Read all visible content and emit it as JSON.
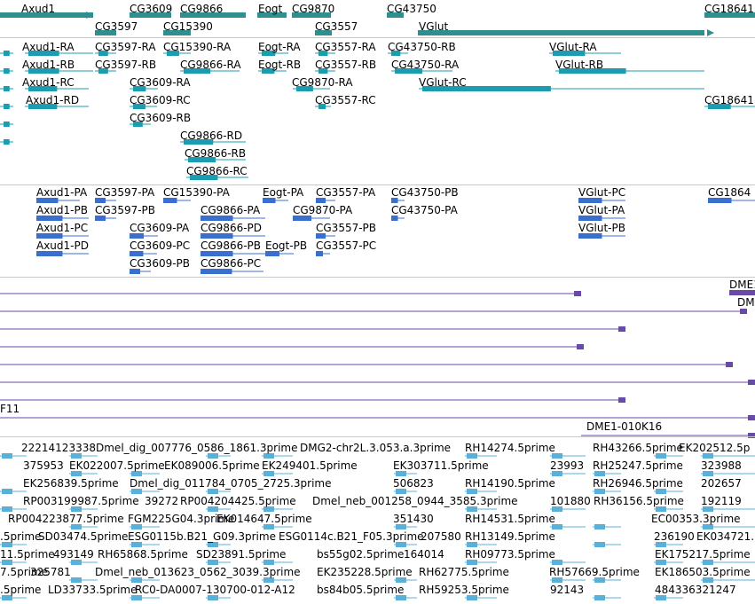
{
  "colors": {
    "gene": "#2f8f8f",
    "mrna": "#1b9db0",
    "protein": "#3a6fd0",
    "cdna": "#6a4aa8",
    "est": "#5ab0d8"
  },
  "genes": [
    "Axud1",
    "CG3609",
    "CG9866",
    "Eogt",
    "CG9870",
    "CG43750",
    "CG18641",
    "CG3597",
    "CG15390",
    "CG3557",
    "VGlut"
  ],
  "mrnas": [
    "Axud1-RA",
    "CG3597-RA",
    "CG15390-RA",
    "Eogt-RA",
    "CG3557-RA",
    "CG43750-RB",
    "VGlut-RA",
    "Axud1-RB",
    "CG3597-RB",
    "CG9866-RA",
    "Eogt-RB",
    "CG3557-RB",
    "CG43750-RA",
    "VGlut-RB",
    "Axud1-RC",
    "CG3609-RA",
    "CG9870-RA",
    "VGlut-RC",
    "Axud1-RD",
    "CG3609-RC",
    "CG3557-RC",
    "CG18641",
    "CG3609-RB",
    "CG9866-RD",
    "CG9866-RB",
    "CG9866-RC"
  ],
  "proteins": [
    "Axud1-PA",
    "CG3597-PA",
    "CG15390-PA",
    "Eogt-PA",
    "CG3557-PA",
    "CG43750-PB",
    "VGlut-PC",
    "CG1864",
    "Axud1-PB",
    "CG3597-PB",
    "CG9866-PA",
    "CG9870-PA",
    "CG43750-PA",
    "VGlut-PA",
    "Axud1-PC",
    "CG3609-PA",
    "CG9866-PD",
    "CG3557-PB",
    "VGlut-PB",
    "Axud1-PD",
    "CG3609-PC",
    "CG9866-PB",
    "Eogt-PB",
    "CG3557-PC",
    "CG3609-PB",
    "CG9866-PC"
  ],
  "cdna": [
    "DME1",
    "DM",
    "F11",
    "DME1-010K16"
  ],
  "ests": [
    "22214123338",
    "Dmel_dig_007776_0586_1861.3prime",
    "DMG2-chr2L.3.053.a.3prime",
    "RH14274.5prime",
    "RH43266.5prime",
    "EK202512.5p",
    "375953",
    "EK022007.5prime",
    "EK089006.5prime",
    "EK249401.5prime",
    "EK303711.5prime",
    "23993",
    "RH25247.5prime",
    "323988",
    "EK256839.5prime",
    "Dmel_dig_011784_0705_2725.3prime",
    "506823",
    "RH14190.5prime",
    "RH26946.5prime",
    "202657",
    "RP003199987.5prime",
    "39272",
    "RP004204425.5prime",
    "Dmel_neb_001258_0944_3585.3prime",
    "101880",
    "RH36156.5prime",
    "192119",
    "RP004223877.5prime",
    "FGM225G04.3prime",
    "EK014647.5prime",
    "351430",
    "RH14531.5prime",
    "EC00353.3prime",
    ".5prime",
    "SD03474.5prime",
    "ESG0115b.B21_G09.3prime",
    "ESG0114c.B21_F05.3prime",
    "207580",
    "RH13149.5prime",
    "236190",
    "EK034721.",
    "11.5prime",
    "493149",
    "RH65868.5prime",
    "SD23891.5prime",
    "bs55g02.5prime",
    "164014",
    "RH09773.5prime",
    "EK175217.5prime",
    "7.5prime",
    "325781",
    "Dmel_neb_013623_0562_3039.3prime",
    "EK235228.5prime",
    "RH62775.5prime",
    "RH57669.5prime",
    "EK186503.5prime",
    ".5prime",
    "LD33733.5prime",
    "RC0-DA0007-130700-012-A12",
    "bs84b05.5prime",
    "RH59253.5prime",
    "92143",
    "484336321247"
  ]
}
